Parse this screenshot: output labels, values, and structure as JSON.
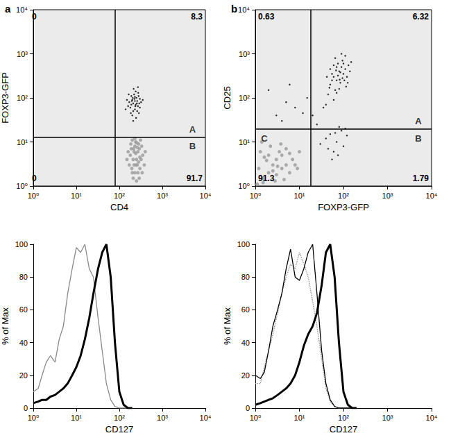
{
  "chart_data": [
    {
      "panel": "a",
      "type": "scatter",
      "log": true,
      "x_label": "CD4",
      "y_label": "FOXP3-GFP",
      "xlim": [
        1,
        10000
      ],
      "ylim": [
        1,
        10000
      ],
      "xticks": [
        {
          "value": 1,
          "label": "10⁰"
        },
        {
          "value": 10,
          "label": "10¹"
        },
        {
          "value": 100,
          "label": "10²"
        },
        {
          "value": 1000,
          "label": "10³"
        },
        {
          "value": 10000,
          "label": "10⁴"
        }
      ],
      "yticks": [
        {
          "value": 1,
          "label": "10⁰"
        },
        {
          "value": 10,
          "label": "10¹"
        },
        {
          "value": 100,
          "label": "10²"
        },
        {
          "value": 1000,
          "label": "10³"
        },
        {
          "value": 10000,
          "label": "10⁴"
        }
      ],
      "gate_x": 80,
      "gate_y": 13,
      "quadrant_values": {
        "upper_left": 0,
        "upper_right": 8.3,
        "lower_left": 0,
        "lower_right": 91.7
      },
      "region_labels": [
        {
          "text": "A",
          "x": 5000,
          "y": 19
        },
        {
          "text": "B",
          "x": 5000,
          "y": 8
        }
      ],
      "series": [
        {
          "color": "#9a9a9a",
          "points": [
            [
              200,
              2
            ],
            [
              220,
              3
            ],
            [
              250,
              4
            ],
            [
              180,
              5
            ],
            [
              300,
              2.5
            ],
            [
              270,
              6
            ],
            [
              230,
              8
            ],
            [
              210,
              1.5
            ],
            [
              320,
              4
            ],
            [
              260,
              3
            ],
            [
              190,
              7
            ],
            [
              240,
              10
            ],
            [
              280,
              9
            ],
            [
              170,
              3
            ],
            [
              350,
              5
            ],
            [
              230,
              2
            ],
            [
              290,
              7
            ],
            [
              210,
              4
            ],
            [
              250,
              1.3
            ],
            [
              330,
              8
            ],
            [
              160,
              6
            ],
            [
              380,
              3
            ],
            [
              200,
              11
            ],
            [
              270,
              2
            ],
            [
              240,
              5.5
            ],
            [
              310,
              11
            ],
            [
              185,
              9
            ],
            [
              260,
              7.5
            ],
            [
              220,
              6
            ],
            [
              300,
              4.5
            ],
            [
              150,
              4
            ],
            [
              400,
              6
            ],
            [
              230,
              12
            ],
            [
              280,
              3.5
            ],
            [
              195,
              2.5
            ],
            [
              340,
              2
            ],
            [
              255,
              9.5
            ],
            [
              215,
              7
            ],
            [
              290,
              1.5
            ],
            [
              245,
              3
            ]
          ]
        },
        {
          "color": "#000000",
          "points": [
            [
              180,
              60
            ],
            [
              210,
              75
            ],
            [
              240,
              70
            ],
            [
              200,
              90
            ],
            [
              260,
              85
            ],
            [
              230,
              55
            ],
            [
              190,
              110
            ],
            [
              270,
              65
            ],
            [
              220,
              120
            ],
            [
              250,
              100
            ],
            [
              170,
              80
            ],
            [
              290,
              75
            ],
            [
              210,
              50
            ],
            [
              240,
              140
            ],
            [
              200,
              40
            ],
            [
              300,
              95
            ],
            [
              160,
              65
            ],
            [
              280,
              110
            ],
            [
              230,
              85
            ],
            [
              190,
              70
            ],
            [
              260,
              50
            ],
            [
              215,
              160
            ],
            [
              320,
              80
            ],
            [
              150,
              90
            ],
            [
              245,
              35
            ],
            [
              275,
              130
            ],
            [
              205,
              100
            ],
            [
              185,
              45
            ],
            [
              235,
              65
            ],
            [
              225,
              95
            ],
            [
              300,
              60
            ],
            [
              165,
              120
            ],
            [
              255,
              75
            ],
            [
              210,
              30
            ],
            [
              350,
              90
            ],
            [
              140,
              55
            ],
            [
              270,
              175
            ],
            [
              195,
              85
            ],
            [
              230,
              105
            ],
            [
              285,
              45
            ]
          ]
        }
      ]
    },
    {
      "panel": "b",
      "type": "scatter",
      "log": true,
      "x_label": "FOXP3-GFP",
      "y_label": "CD25",
      "xlim": [
        1,
        10000
      ],
      "ylim": [
        1,
        10000
      ],
      "xticks": [
        {
          "value": 1,
          "label": "10⁰"
        },
        {
          "value": 10,
          "label": "10¹"
        },
        {
          "value": 100,
          "label": "10²"
        },
        {
          "value": 1000,
          "label": "10³"
        },
        {
          "value": 10000,
          "label": "10⁴"
        }
      ],
      "yticks": [
        {
          "value": 1,
          "label": "10⁰"
        },
        {
          "value": 10,
          "label": "10¹"
        },
        {
          "value": 100,
          "label": "10²"
        },
        {
          "value": 1000,
          "label": "10³"
        },
        {
          "value": 10000,
          "label": "10⁴"
        }
      ],
      "gate_x": 18,
      "gate_y": 20,
      "quadrant_values": {
        "upper_left": 0.63,
        "upper_right": 6.32,
        "lower_left": 91.3,
        "lower_right": 1.79
      },
      "region_labels": [
        {
          "text": "A",
          "x": 5000,
          "y": 30
        },
        {
          "text": "B",
          "x": 5000,
          "y": 12
        },
        {
          "text": "C",
          "x": 1.6,
          "y": 12
        }
      ],
      "series": [
        {
          "color": "#9a9a9a",
          "points": [
            [
              1.5,
              1.5
            ],
            [
              2,
              2
            ],
            [
              3,
              1.8
            ],
            [
              2.5,
              3
            ],
            [
              4,
              2.5
            ],
            [
              1.2,
              2.5
            ],
            [
              3,
              4
            ],
            [
              5,
              3
            ],
            [
              2,
              5
            ],
            [
              1.5,
              1.2
            ],
            [
              6,
              2
            ],
            [
              4,
              5
            ],
            [
              2.8,
              1.3
            ],
            [
              1.8,
              3.8
            ],
            [
              3.5,
              6
            ],
            [
              7,
              4
            ],
            [
              1.3,
              6
            ],
            [
              5,
              7
            ],
            [
              2.2,
              8
            ],
            [
              8,
              3
            ],
            [
              1.1,
              1.1
            ],
            [
              4.5,
              1.4
            ],
            [
              2.5,
              2.2
            ],
            [
              3.2,
              2.8
            ],
            [
              6,
              5.5
            ],
            [
              1.6,
              4.5
            ],
            [
              9,
              2.5
            ],
            [
              3.8,
              9
            ],
            [
              1.4,
              10
            ],
            [
              10,
              6
            ]
          ]
        },
        {
          "color": "#000000",
          "points": [
            [
              60,
              300
            ],
            [
              80,
              400
            ],
            [
              70,
              250
            ],
            [
              90,
              500
            ],
            [
              50,
              200
            ],
            [
              100,
              350
            ],
            [
              75,
              600
            ],
            [
              65,
              150
            ],
            [
              110,
              450
            ],
            [
              55,
              350
            ],
            [
              85,
              220
            ],
            [
              95,
              700
            ],
            [
              45,
              120
            ],
            [
              120,
              300
            ],
            [
              70,
              500
            ],
            [
              60,
              90
            ],
            [
              80,
              160
            ],
            [
              105,
              250
            ],
            [
              40,
              70
            ],
            [
              90,
              1000
            ],
            [
              130,
              550
            ],
            [
              50,
              450
            ],
            [
              75,
              320
            ],
            [
              65,
              800
            ],
            [
              115,
              180
            ],
            [
              35,
              60
            ],
            [
              85,
              380
            ],
            [
              100,
              600
            ],
            [
              55,
              250
            ],
            [
              140,
              400
            ],
            [
              70,
              130
            ],
            [
              95,
              280
            ],
            [
              48,
              170
            ],
            [
              125,
              220
            ],
            [
              60,
              550
            ],
            [
              82,
              260
            ],
            [
              150,
              650
            ],
            [
              42,
              300
            ],
            [
              110,
              900
            ],
            [
              68,
              420
            ],
            [
              50,
              15
            ],
            [
              70,
              10
            ],
            [
              90,
              18
            ],
            [
              60,
              6
            ],
            [
              40,
              12
            ],
            [
              100,
              8
            ],
            [
              80,
              22
            ],
            [
              55,
              4
            ],
            [
              120,
              14
            ],
            [
              65,
              16
            ],
            [
              30,
              9
            ],
            [
              75,
              5
            ],
            [
              110,
              20
            ],
            [
              45,
              7
            ],
            [
              3,
              40
            ],
            [
              5,
              80
            ],
            [
              2,
              150
            ],
            [
              8,
              60
            ],
            [
              4,
              30
            ],
            [
              6,
              200
            ],
            [
              12,
              45
            ],
            [
              15,
              100
            ],
            [
              25,
              25
            ],
            [
              20,
              40
            ]
          ]
        }
      ]
    },
    {
      "type": "line",
      "log": "x",
      "x_label": "CD127",
      "y_label": "% of Max",
      "xlim": [
        1,
        10000
      ],
      "ylim": [
        0,
        100
      ],
      "xticks": [
        {
          "value": 1,
          "label": "10⁰"
        },
        {
          "value": 10,
          "label": "10¹"
        },
        {
          "value": 100,
          "label": "10²"
        },
        {
          "value": 1000,
          "label": "10³"
        },
        {
          "value": 10000,
          "label": "10⁴"
        }
      ],
      "yticks": [
        0,
        20,
        40,
        60,
        80,
        100
      ],
      "x": [
        1,
        1.3,
        1.6,
        2,
        2.5,
        3.2,
        4,
        5,
        6.3,
        8,
        10,
        12.6,
        15.8,
        20,
        25,
        32,
        40,
        50,
        63,
        79,
        100,
        126,
        158,
        200
      ],
      "series": [
        {
          "color": "#888888",
          "line_style": "solid",
          "values": [
            10,
            12,
            20,
            28,
            32,
            28,
            42,
            50,
            70,
            85,
            98,
            95,
            100,
            85,
            80,
            55,
            35,
            15,
            5,
            1,
            0,
            0,
            0,
            0
          ]
        },
        {
          "color": "#000000",
          "line_style": "bold",
          "values": [
            3,
            4,
            5,
            5,
            7,
            8,
            10,
            12,
            15,
            20,
            25,
            32,
            42,
            55,
            70,
            85,
            95,
            100,
            80,
            40,
            10,
            2,
            0,
            0
          ]
        }
      ]
    },
    {
      "type": "line",
      "log": "x",
      "x_label": "CD127",
      "y_label": "% of Max",
      "xlim": [
        1,
        10000
      ],
      "ylim": [
        0,
        100
      ],
      "xticks": [
        {
          "value": 1,
          "label": "10⁰"
        },
        {
          "value": 10,
          "label": "10¹"
        },
        {
          "value": 100,
          "label": "10²"
        },
        {
          "value": 1000,
          "label": "10³"
        },
        {
          "value": 10000,
          "label": "10⁴"
        }
      ],
      "yticks": [
        0,
        20,
        40,
        60,
        80,
        100
      ],
      "x": [
        1,
        1.3,
        1.6,
        2,
        2.5,
        3.2,
        4,
        5,
        6.3,
        8,
        10,
        12.6,
        15.8,
        20,
        25,
        32,
        40,
        50,
        63,
        79,
        100,
        126,
        158,
        200
      ],
      "series": [
        {
          "color": "#888888",
          "line_style": "dotted",
          "values": [
            15,
            15,
            25,
            35,
            45,
            58,
            70,
            80,
            88,
            85,
            95,
            88,
            80,
            65,
            50,
            30,
            12,
            4,
            1,
            0,
            0,
            0,
            0,
            0
          ]
        },
        {
          "color": "#000000",
          "line_style": "solid",
          "values": [
            20,
            18,
            22,
            35,
            50,
            60,
            70,
            85,
            97,
            80,
            78,
            85,
            95,
            100,
            70,
            35,
            15,
            5,
            1,
            0,
            0,
            0,
            0,
            0
          ]
        },
        {
          "color": "#000000",
          "line_style": "bold",
          "values": [
            2,
            3,
            4,
            5,
            6,
            8,
            10,
            12,
            15,
            20,
            28,
            38,
            45,
            50,
            58,
            75,
            95,
            100,
            80,
            40,
            10,
            2,
            0,
            0
          ]
        }
      ]
    }
  ]
}
